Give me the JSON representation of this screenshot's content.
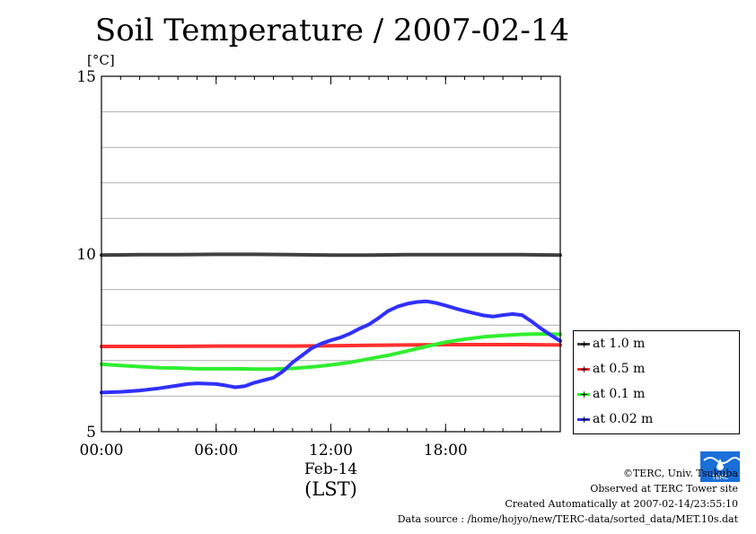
{
  "chart_data": {
    "type": "line",
    "title": "Soil Temperature / 2007-02-14",
    "ylabel": "[°C]",
    "ylim": [
      5,
      15
    ],
    "yticks": [
      {
        "value": 5,
        "label": "5"
      },
      {
        "value": 10,
        "label": "10"
      },
      {
        "value": 15,
        "label": "15"
      }
    ],
    "xlim": [
      0,
      24
    ],
    "xticks": [
      {
        "value": 0,
        "label": "00:00"
      },
      {
        "value": 6,
        "label": "06:00"
      },
      {
        "value": 12,
        "label": "12:00"
      },
      {
        "value": 18,
        "label": "18:00"
      }
    ],
    "xlabel_date": "Feb-14",
    "xlabel_unit": "(LST)",
    "grid": true,
    "legend_position": "right",
    "series": [
      {
        "name": "at 1.0 m",
        "color": "#404040",
        "points": [
          [
            0,
            9.97
          ],
          [
            2,
            9.98
          ],
          [
            4,
            9.98
          ],
          [
            6,
            9.99
          ],
          [
            8,
            9.99
          ],
          [
            10,
            9.98
          ],
          [
            12,
            9.97
          ],
          [
            14,
            9.97
          ],
          [
            16,
            9.98
          ],
          [
            18,
            9.98
          ],
          [
            20,
            9.98
          ],
          [
            22,
            9.98
          ],
          [
            24,
            9.97
          ]
        ]
      },
      {
        "name": "at 0.5 m",
        "color": "#ff3030",
        "points": [
          [
            0,
            7.4
          ],
          [
            4,
            7.4
          ],
          [
            6,
            7.41
          ],
          [
            8,
            7.41
          ],
          [
            10,
            7.41
          ],
          [
            12,
            7.42
          ],
          [
            14,
            7.43
          ],
          [
            16,
            7.44
          ],
          [
            18,
            7.45
          ],
          [
            20,
            7.45
          ],
          [
            22,
            7.45
          ],
          [
            24,
            7.44
          ]
        ]
      },
      {
        "name": "at 0.1 m",
        "color": "#30ee30",
        "points": [
          [
            0,
            6.9
          ],
          [
            1,
            6.86
          ],
          [
            2,
            6.83
          ],
          [
            3,
            6.8
          ],
          [
            4,
            6.79
          ],
          [
            5,
            6.77
          ],
          [
            6,
            6.77
          ],
          [
            7,
            6.77
          ],
          [
            8,
            6.76
          ],
          [
            9,
            6.76
          ],
          [
            10,
            6.78
          ],
          [
            11,
            6.82
          ],
          [
            12,
            6.88
          ],
          [
            13,
            6.95
          ],
          [
            14,
            7.05
          ],
          [
            15,
            7.15
          ],
          [
            16,
            7.27
          ],
          [
            17,
            7.4
          ],
          [
            18,
            7.52
          ],
          [
            19,
            7.6
          ],
          [
            20,
            7.67
          ],
          [
            21,
            7.71
          ],
          [
            22,
            7.74
          ],
          [
            23,
            7.75
          ],
          [
            24,
            7.74
          ]
        ]
      },
      {
        "name": "at 0.02 m",
        "color": "#3030ff",
        "points": [
          [
            0,
            6.1
          ],
          [
            1,
            6.12
          ],
          [
            2,
            6.16
          ],
          [
            3,
            6.22
          ],
          [
            4,
            6.3
          ],
          [
            4.5,
            6.34
          ],
          [
            5,
            6.36
          ],
          [
            6,
            6.34
          ],
          [
            6.5,
            6.3
          ],
          [
            7,
            6.25
          ],
          [
            7.5,
            6.28
          ],
          [
            8,
            6.38
          ],
          [
            9,
            6.52
          ],
          [
            9.5,
            6.7
          ],
          [
            10,
            6.95
          ],
          [
            10.5,
            7.15
          ],
          [
            11,
            7.35
          ],
          [
            11.5,
            7.48
          ],
          [
            12,
            7.57
          ],
          [
            12.5,
            7.65
          ],
          [
            13,
            7.76
          ],
          [
            13.5,
            7.9
          ],
          [
            14,
            8.02
          ],
          [
            14.5,
            8.2
          ],
          [
            15,
            8.4
          ],
          [
            15.5,
            8.52
          ],
          [
            16,
            8.6
          ],
          [
            16.5,
            8.65
          ],
          [
            17,
            8.67
          ],
          [
            17.5,
            8.62
          ],
          [
            18,
            8.55
          ],
          [
            18.5,
            8.47
          ],
          [
            19,
            8.4
          ],
          [
            19.5,
            8.33
          ],
          [
            20,
            8.27
          ],
          [
            20.5,
            8.24
          ],
          [
            21,
            8.28
          ],
          [
            21.5,
            8.31
          ],
          [
            22,
            8.28
          ],
          [
            22.5,
            8.1
          ],
          [
            23,
            7.9
          ],
          [
            23.5,
            7.72
          ],
          [
            24,
            7.55
          ]
        ]
      }
    ]
  },
  "credits": {
    "line1": "©TERC, Univ. Tsukuba",
    "line2": "Observed at TERC Tower site",
    "line3": "Created Automatically at 2007-02-14/23:55:10",
    "line4": "Data source : /home/hojyo/new/TERC-data/sorted_data/MET.10s.dat"
  },
  "logo": {
    "text": "TERC",
    "color": "#1a6fd8"
  }
}
